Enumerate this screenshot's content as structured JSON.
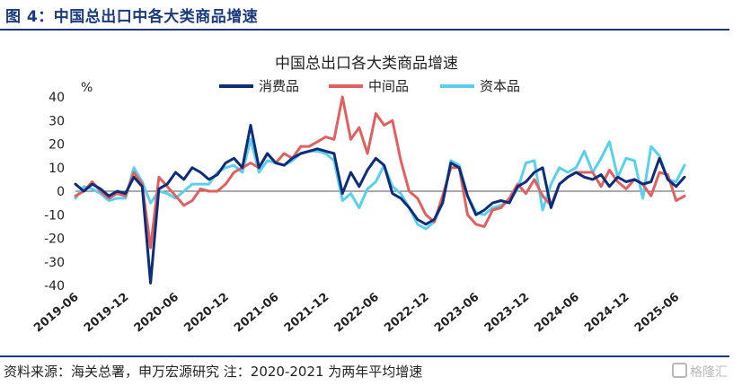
{
  "figure_title": "图 4：中国总出口中各大类商品增速",
  "source_note": "资料来源：海关总署，申万宏源研究 注：2020-2021 为两年平均增速",
  "watermark": "格隆汇",
  "chart_data": {
    "type": "line",
    "title": "中国总出口各大类商品增速",
    "ylabel": "%",
    "ylim": [
      -40,
      40
    ],
    "ytick_step": 10,
    "grid": false,
    "legend_position": "top",
    "x": [
      "2019-06",
      "2019-07",
      "2019-08",
      "2019-09",
      "2019-10",
      "2019-11",
      "2019-12",
      "2020-01",
      "2020-02",
      "2020-03",
      "2020-04",
      "2020-05",
      "2020-06",
      "2020-07",
      "2020-08",
      "2020-09",
      "2020-10",
      "2020-11",
      "2020-12",
      "2021-01",
      "2021-02",
      "2021-03",
      "2021-04",
      "2021-05",
      "2021-06",
      "2021-07",
      "2021-08",
      "2021-09",
      "2021-10",
      "2021-11",
      "2021-12",
      "2022-01",
      "2022-02",
      "2022-03",
      "2022-04",
      "2022-05",
      "2022-06",
      "2022-07",
      "2022-08",
      "2022-09",
      "2022-10",
      "2022-11",
      "2022-12",
      "2023-01",
      "2023-02",
      "2023-03",
      "2023-04",
      "2023-05",
      "2023-06",
      "2023-07",
      "2023-08",
      "2023-09",
      "2023-10",
      "2023-11",
      "2023-12",
      "2024-01",
      "2024-02",
      "2024-03",
      "2024-04",
      "2024-05",
      "2024-06",
      "2024-07",
      "2024-08",
      "2024-09",
      "2024-10",
      "2024-11",
      "2024-12",
      "2025-01",
      "2025-02",
      "2025-03",
      "2025-04",
      "2025-05",
      "2025-06",
      "2025-07"
    ],
    "x_tick_labels": [
      "2019-06",
      "2019-12",
      "2020-06",
      "2020-12",
      "2021-06",
      "2021-12",
      "2022-06",
      "2022-12",
      "2023-06",
      "2023-12",
      "2024-06",
      "2024-12",
      "2025-06"
    ],
    "series": [
      {
        "name": "消费品",
        "color": "#0d2d7a",
        "values": [
          3,
          0,
          3,
          1,
          -2,
          0,
          -1,
          6,
          2,
          -39,
          1,
          3,
          8,
          5,
          10,
          8,
          5,
          7,
          12,
          14,
          10,
          28,
          10,
          16,
          12,
          11,
          14,
          16,
          17,
          18,
          17,
          16,
          -1,
          8,
          2,
          9,
          14,
          11,
          -1,
          -3,
          -7,
          -12,
          -14,
          -12,
          -5,
          12,
          10,
          -2,
          -10,
          -8,
          -5,
          -4,
          -5,
          2,
          4,
          8,
          10,
          -7,
          3,
          6,
          8,
          6,
          5,
          7,
          2,
          6,
          4,
          5,
          3,
          4,
          14,
          5,
          2,
          6
        ]
      },
      {
        "name": "中间品",
        "color": "#e06060",
        "values": [
          -2,
          0,
          4,
          0,
          -3,
          -1,
          -2,
          8,
          3,
          -24,
          6,
          2,
          -2,
          -6,
          -4,
          1,
          0,
          0,
          3,
          8,
          10,
          12,
          10,
          16,
          12,
          16,
          14,
          19,
          19,
          21,
          23,
          22,
          40,
          22,
          27,
          16,
          33,
          28,
          30,
          13,
          0,
          -3,
          -10,
          -13,
          -2,
          10,
          10,
          -10,
          -14,
          -15,
          -8,
          -7,
          -3,
          3,
          -1,
          5,
          -2,
          -6,
          3,
          6,
          8,
          8,
          8,
          2,
          9,
          4,
          1,
          5,
          3,
          -2,
          8,
          7,
          -4,
          -2
        ]
      },
      {
        "name": "资本品",
        "color": "#5bcfee",
        "values": [
          -3,
          2,
          1,
          -1,
          -4,
          -3,
          -3,
          10,
          4,
          -5,
          0,
          -1,
          -3,
          0,
          3,
          3,
          3,
          8,
          10,
          11,
          8,
          22,
          8,
          13,
          12,
          11,
          13,
          16,
          17,
          17,
          16,
          13,
          -4,
          -1,
          -7,
          1,
          4,
          11,
          2,
          -1,
          -7,
          -14,
          -16,
          -13,
          -5,
          13,
          11,
          -2,
          -9,
          -10,
          -7,
          -6,
          -4,
          1,
          12,
          13,
          -8,
          3,
          10,
          8,
          10,
          17,
          8,
          14,
          21,
          6,
          14,
          13,
          -3,
          19,
          15,
          5,
          4,
          11
        ]
      }
    ]
  }
}
